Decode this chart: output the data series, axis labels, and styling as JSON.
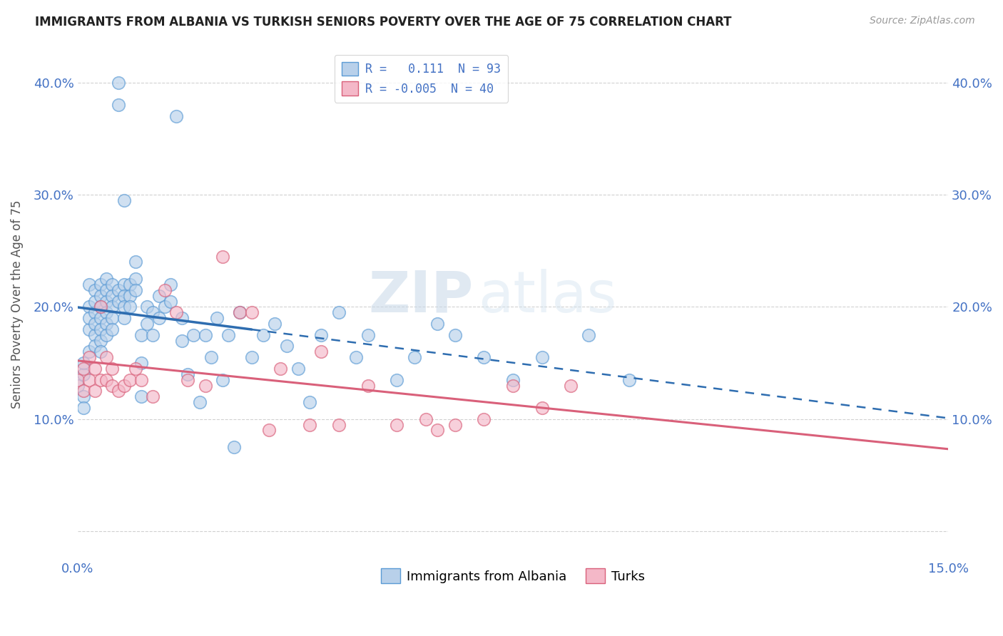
{
  "title": "IMMIGRANTS FROM ALBANIA VS TURKISH SENIORS POVERTY OVER THE AGE OF 75 CORRELATION CHART",
  "source": "Source: ZipAtlas.com",
  "ylabel": "Seniors Poverty Over the Age of 75",
  "xlim": [
    0.0,
    0.15
  ],
  "ylim": [
    -0.025,
    0.43
  ],
  "ytick_vals": [
    0.0,
    0.1,
    0.2,
    0.3,
    0.4
  ],
  "ytick_labels": [
    "",
    "10.0%",
    "20.0%",
    "30.0%",
    "40.0%"
  ],
  "xtick_vals": [
    0.0,
    0.05,
    0.1,
    0.15
  ],
  "xtick_labels": [
    "0.0%",
    "",
    "",
    "15.0%"
  ],
  "legend_labels": [
    "Immigrants from Albania",
    "Turks"
  ],
  "series_albania": {
    "R": 0.111,
    "N": 93,
    "face_color": "#b8d0ea",
    "edge_color": "#5b9bd5",
    "line_color": "#2e6db0"
  },
  "series_turks": {
    "R": -0.005,
    "N": 40,
    "face_color": "#f4b8c8",
    "edge_color": "#d9607a",
    "line_color": "#d9607a"
  },
  "watermark_zip": "ZIP",
  "watermark_atlas": "atlas",
  "background_color": "#ffffff",
  "grid_color": "#cccccc",
  "albania_x": [
    0.0,
    0.001,
    0.001,
    0.001,
    0.001,
    0.002,
    0.002,
    0.002,
    0.002,
    0.002,
    0.003,
    0.003,
    0.003,
    0.003,
    0.003,
    0.003,
    0.004,
    0.004,
    0.004,
    0.004,
    0.004,
    0.004,
    0.004,
    0.005,
    0.005,
    0.005,
    0.005,
    0.005,
    0.005,
    0.006,
    0.006,
    0.006,
    0.006,
    0.006,
    0.007,
    0.007,
    0.007,
    0.007,
    0.008,
    0.008,
    0.008,
    0.008,
    0.008,
    0.009,
    0.009,
    0.009,
    0.01,
    0.01,
    0.01,
    0.011,
    0.011,
    0.011,
    0.012,
    0.012,
    0.013,
    0.013,
    0.014,
    0.014,
    0.015,
    0.016,
    0.016,
    0.017,
    0.018,
    0.018,
    0.019,
    0.02,
    0.021,
    0.022,
    0.023,
    0.024,
    0.025,
    0.026,
    0.027,
    0.028,
    0.03,
    0.032,
    0.034,
    0.036,
    0.038,
    0.04,
    0.042,
    0.045,
    0.048,
    0.05,
    0.055,
    0.058,
    0.062,
    0.065,
    0.07,
    0.075,
    0.08,
    0.088,
    0.095
  ],
  "albania_y": [
    0.13,
    0.14,
    0.12,
    0.15,
    0.11,
    0.2,
    0.18,
    0.16,
    0.22,
    0.19,
    0.215,
    0.195,
    0.175,
    0.205,
    0.185,
    0.165,
    0.22,
    0.21,
    0.2,
    0.19,
    0.18,
    0.17,
    0.16,
    0.225,
    0.215,
    0.205,
    0.195,
    0.185,
    0.175,
    0.22,
    0.21,
    0.2,
    0.19,
    0.18,
    0.4,
    0.38,
    0.215,
    0.205,
    0.295,
    0.22,
    0.21,
    0.2,
    0.19,
    0.22,
    0.21,
    0.2,
    0.24,
    0.225,
    0.215,
    0.12,
    0.15,
    0.175,
    0.2,
    0.185,
    0.195,
    0.175,
    0.21,
    0.19,
    0.2,
    0.22,
    0.205,
    0.37,
    0.19,
    0.17,
    0.14,
    0.175,
    0.115,
    0.175,
    0.155,
    0.19,
    0.135,
    0.175,
    0.075,
    0.195,
    0.155,
    0.175,
    0.185,
    0.165,
    0.145,
    0.115,
    0.175,
    0.195,
    0.155,
    0.175,
    0.135,
    0.155,
    0.185,
    0.175,
    0.155,
    0.135,
    0.155,
    0.175,
    0.135
  ],
  "turks_x": [
    0.0,
    0.001,
    0.001,
    0.002,
    0.002,
    0.003,
    0.003,
    0.004,
    0.004,
    0.005,
    0.005,
    0.006,
    0.006,
    0.007,
    0.008,
    0.009,
    0.01,
    0.011,
    0.013,
    0.015,
    0.017,
    0.019,
    0.022,
    0.025,
    0.028,
    0.03,
    0.033,
    0.035,
    0.04,
    0.042,
    0.045,
    0.05,
    0.055,
    0.06,
    0.062,
    0.065,
    0.07,
    0.075,
    0.08,
    0.085
  ],
  "turks_y": [
    0.135,
    0.145,
    0.125,
    0.155,
    0.135,
    0.145,
    0.125,
    0.2,
    0.135,
    0.155,
    0.135,
    0.145,
    0.13,
    0.125,
    0.13,
    0.135,
    0.145,
    0.135,
    0.12,
    0.215,
    0.195,
    0.135,
    0.13,
    0.245,
    0.195,
    0.195,
    0.09,
    0.145,
    0.095,
    0.16,
    0.095,
    0.13,
    0.095,
    0.1,
    0.09,
    0.095,
    0.1,
    0.13,
    0.11,
    0.13
  ]
}
